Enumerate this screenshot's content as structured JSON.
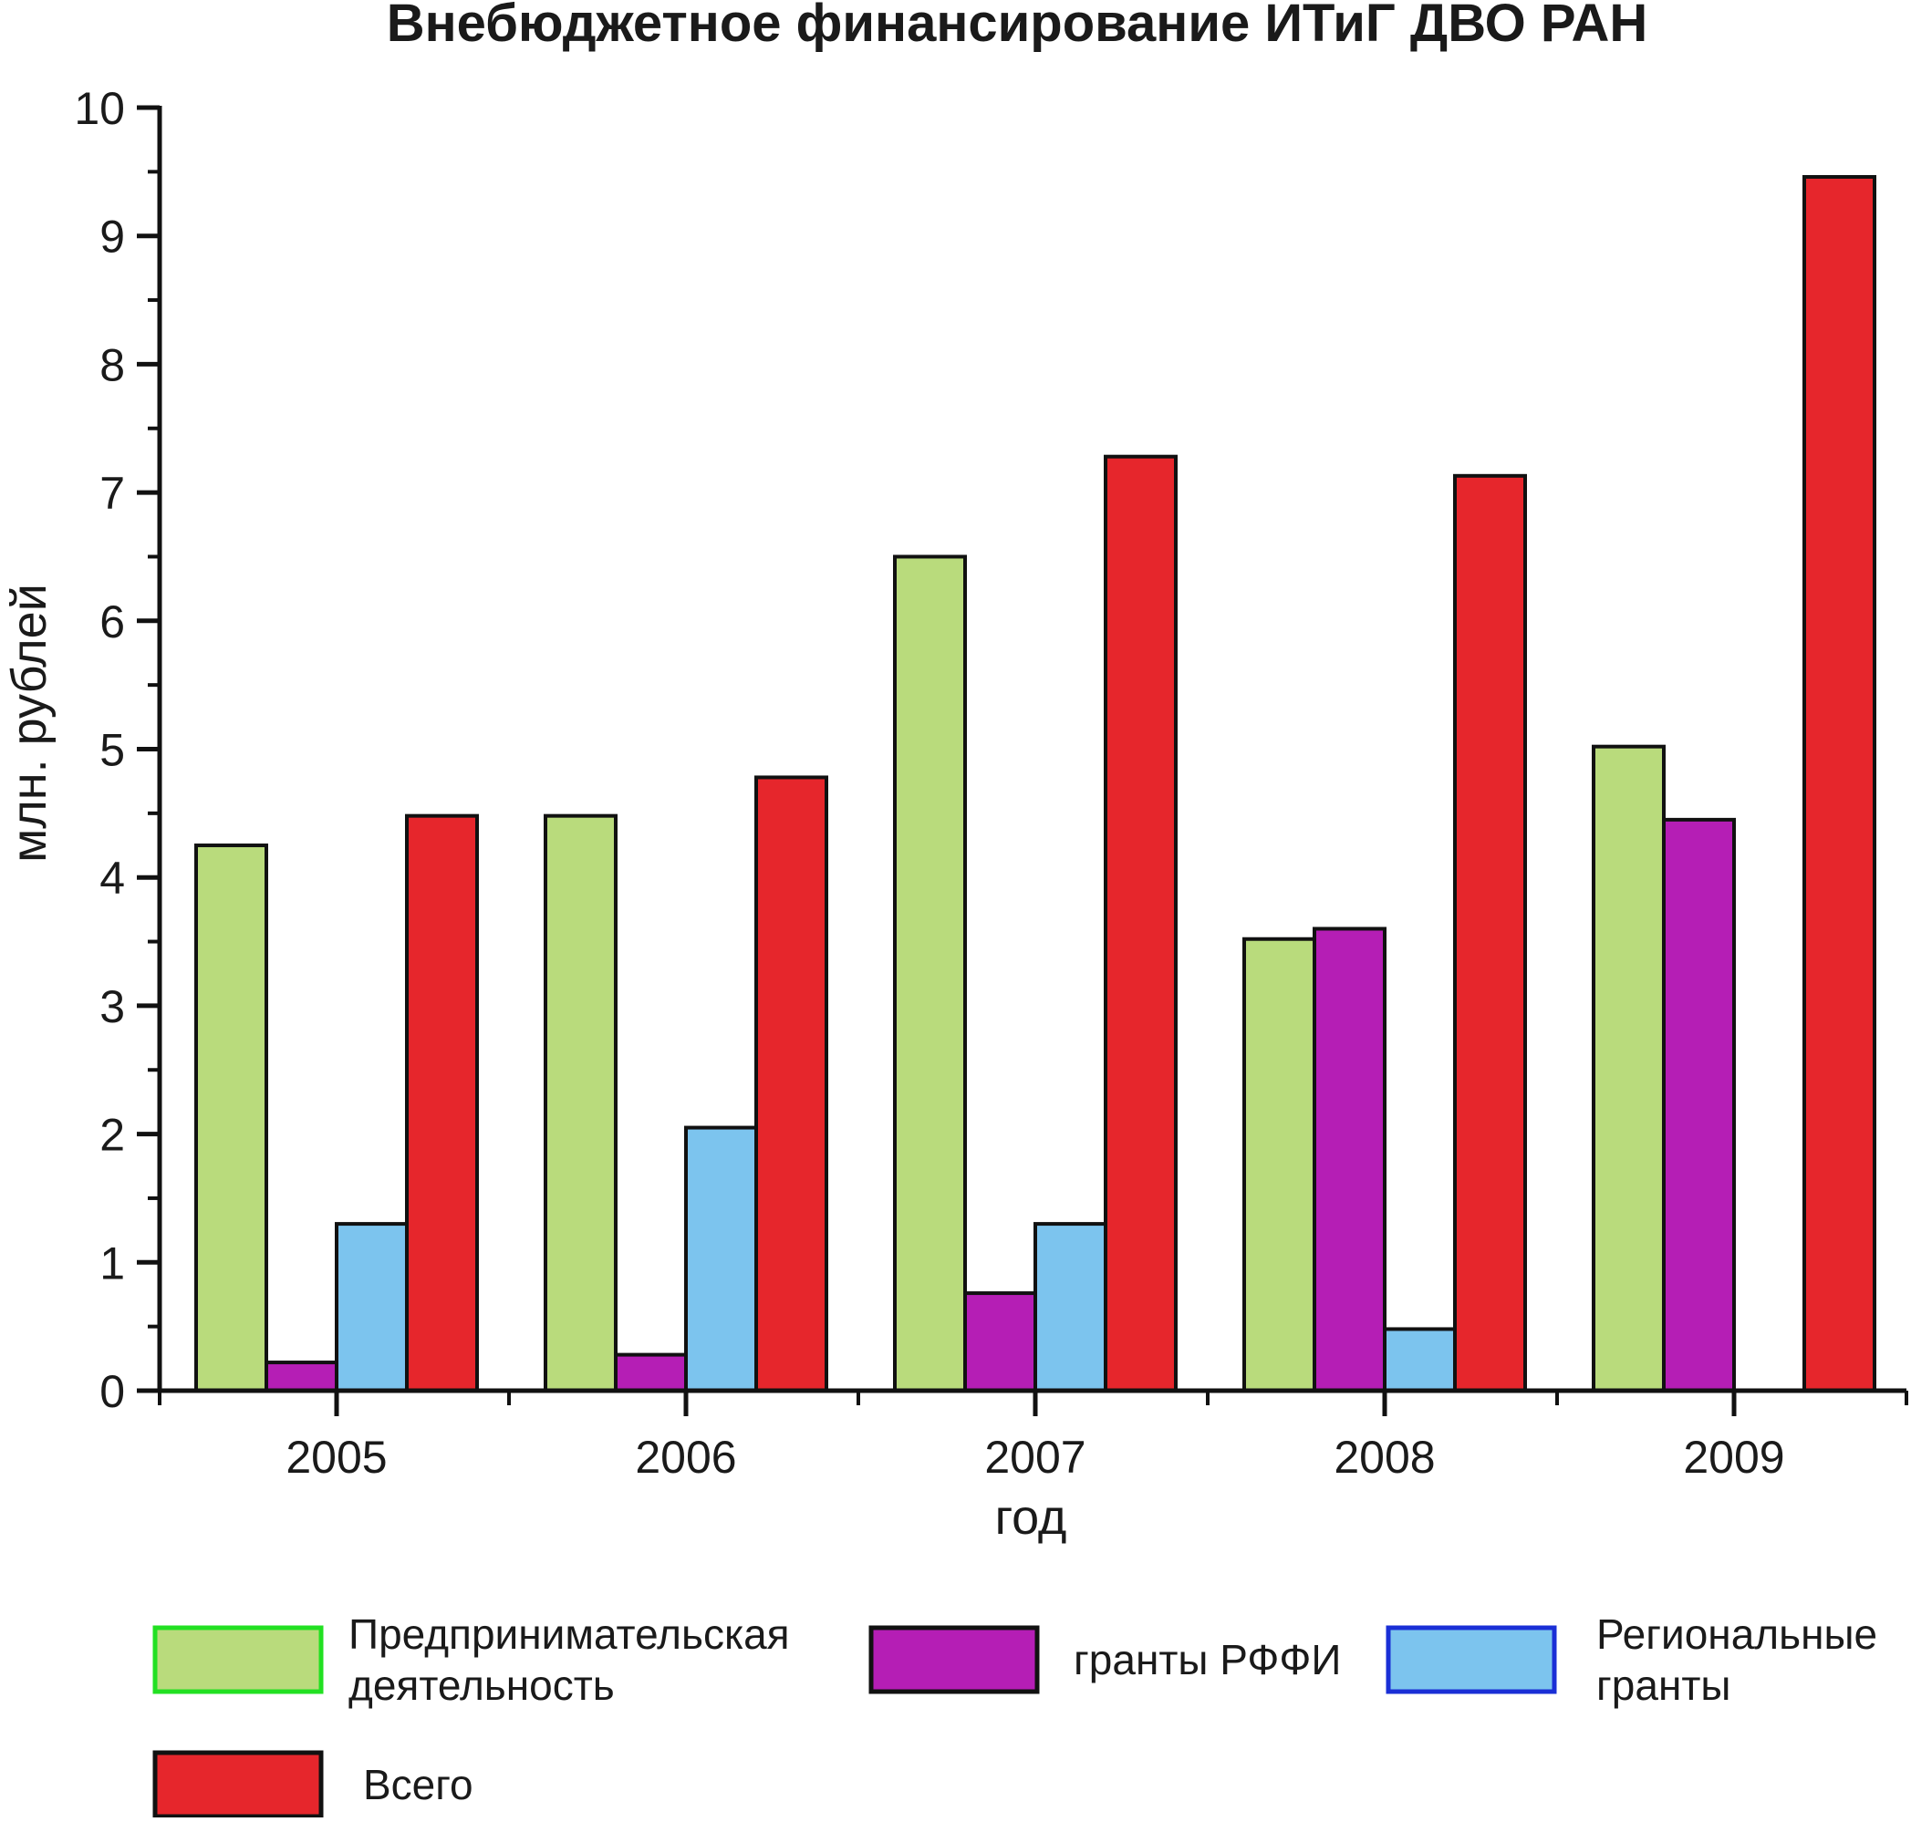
{
  "chart_data": {
    "type": "bar",
    "title": "Внебюджетное финансирование ИТиГ ДВО РАН",
    "xlabel": "год",
    "ylabel": "млн. рублей",
    "ylim": [
      0,
      10
    ],
    "yticks": [
      "0",
      "1",
      "2",
      "3",
      "4",
      "5",
      "6",
      "7",
      "8",
      "9",
      "10"
    ],
    "categories": [
      "2005",
      "2006",
      "2007",
      "2008",
      "2009"
    ],
    "series": [
      {
        "name": "Предпринимательская деятельность",
        "name_lines": [
          "Предпринимательская",
          "деятельность"
        ],
        "values": [
          4.25,
          4.48,
          6.5,
          3.52,
          5.02
        ],
        "color": "#b9db7c",
        "legend_border": "#22e022"
      },
      {
        "name": "гранты РФФИ",
        "name_lines": [
          "гранты РФФИ"
        ],
        "values": [
          0.22,
          0.28,
          0.76,
          3.6,
          4.45
        ],
        "color": "#b51eb5",
        "legend_border": "#111111"
      },
      {
        "name": "Региональные гранты",
        "name_lines": [
          "Региональные",
          "гранты"
        ],
        "values": [
          1.3,
          2.05,
          1.3,
          0.48,
          0
        ],
        "color": "#7cc4ee",
        "legend_border": "#1a2fd6"
      },
      {
        "name": "Всего",
        "name_lines": [
          "Всего"
        ],
        "values": [
          4.48,
          4.78,
          7.28,
          7.13,
          9.46
        ],
        "color": "#e6262c",
        "legend_border": "#111111"
      }
    ],
    "grid": false,
    "legend_position": "bottom"
  }
}
